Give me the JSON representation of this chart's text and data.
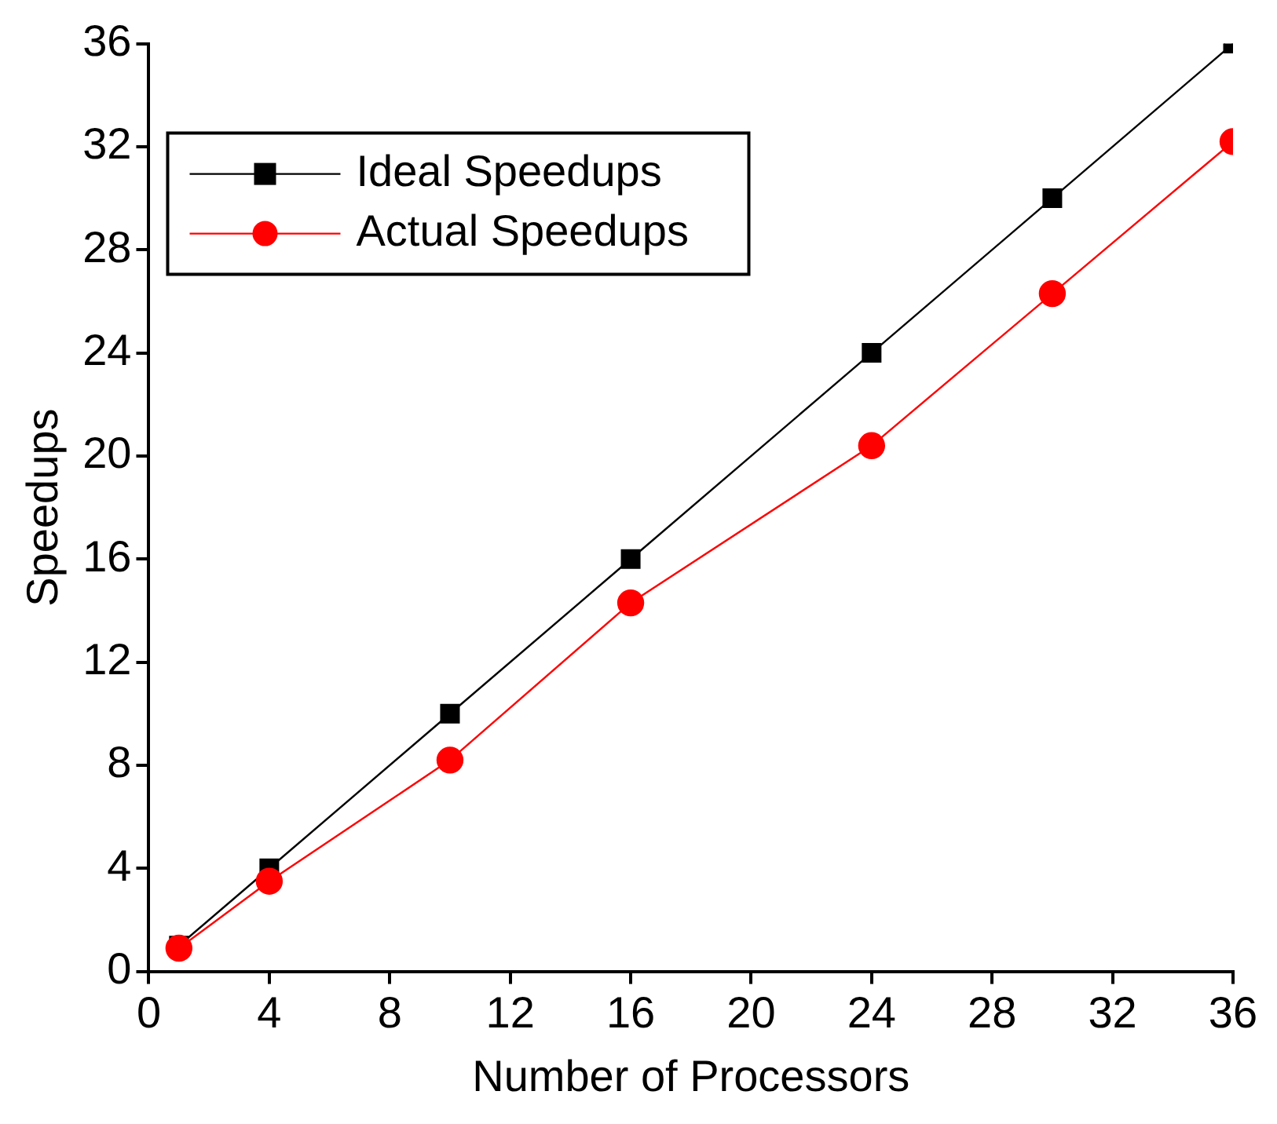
{
  "chart_data": {
    "type": "line",
    "xlabel": "Number of Processors",
    "ylabel": "Speedups",
    "x": [
      1,
      4,
      10,
      16,
      24,
      30,
      36
    ],
    "series": [
      {
        "name": "Ideal Speedups",
        "color": "#000000",
        "marker": "square",
        "values": [
          1,
          4,
          10,
          16,
          24,
          30,
          36
        ]
      },
      {
        "name": "Actual Speedups",
        "color": "#ff0000",
        "marker": "circle",
        "values": [
          0.9,
          3.5,
          8.2,
          14.3,
          20.4,
          26.3,
          32.2
        ]
      }
    ],
    "xlim": [
      0,
      36
    ],
    "xticks": [
      0,
      4,
      8,
      12,
      16,
      20,
      24,
      28,
      32,
      36
    ],
    "ylim": [
      0,
      36
    ],
    "yticks": [
      0,
      4,
      8,
      12,
      16,
      20,
      24,
      28,
      32,
      36
    ],
    "grid": false,
    "legend": "top left",
    "line_style": "solid"
  }
}
